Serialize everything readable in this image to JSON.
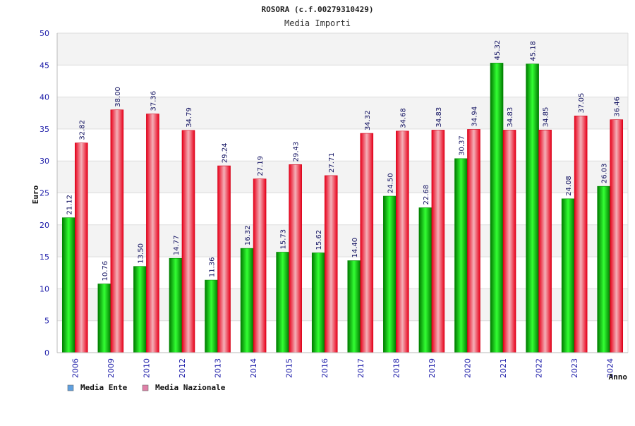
{
  "chart_data": {
    "type": "bar",
    "title": "ROSORA (c.f.00279310429)",
    "subtitle": "Media Importi",
    "xlabel": "Anno",
    "ylabel": "Euro",
    "ylim": [
      0,
      50
    ],
    "yticks": [
      0,
      5,
      10,
      15,
      20,
      25,
      30,
      35,
      40,
      45,
      50
    ],
    "grid": true,
    "legend_position": "bottom-left",
    "categories": [
      "2006",
      "2009",
      "2010",
      "2012",
      "2013",
      "2014",
      "2015",
      "2016",
      "2017",
      "2018",
      "2019",
      "2020",
      "2021",
      "2022",
      "2023",
      "2024"
    ],
    "series": [
      {
        "name": "Media Ente",
        "color": "#00b400",
        "legend_color": "#5fa0e0",
        "values": [
          21.12,
          10.76,
          13.5,
          14.77,
          11.36,
          16.32,
          15.73,
          15.62,
          14.4,
          24.5,
          22.68,
          30.37,
          45.32,
          45.18,
          24.08,
          26.03
        ],
        "labels": [
          "21.12",
          "10.76",
          "13.50",
          "14.77",
          "11.36",
          "16.32",
          "15.73",
          "15.62",
          "14.40",
          "24.50",
          "22.68",
          "30.37",
          "45.32",
          "45.18",
          "24.08",
          "26.03"
        ]
      },
      {
        "name": "Media Nazionale",
        "color": "#e8202a",
        "legend_color": "#e080a8",
        "values": [
          32.82,
          38.0,
          37.36,
          34.79,
          29.24,
          27.19,
          29.43,
          27.71,
          34.32,
          34.68,
          34.83,
          34.94,
          34.83,
          34.85,
          37.05,
          36.46
        ],
        "labels": [
          "32.82",
          "38.00",
          "37.36",
          "34.79",
          "29.24",
          "27.19",
          "29.43",
          "27.71",
          "34.32",
          "34.68",
          "34.83",
          "34.94",
          "34.83",
          "34.85",
          "37.05",
          "36.46"
        ]
      }
    ]
  }
}
